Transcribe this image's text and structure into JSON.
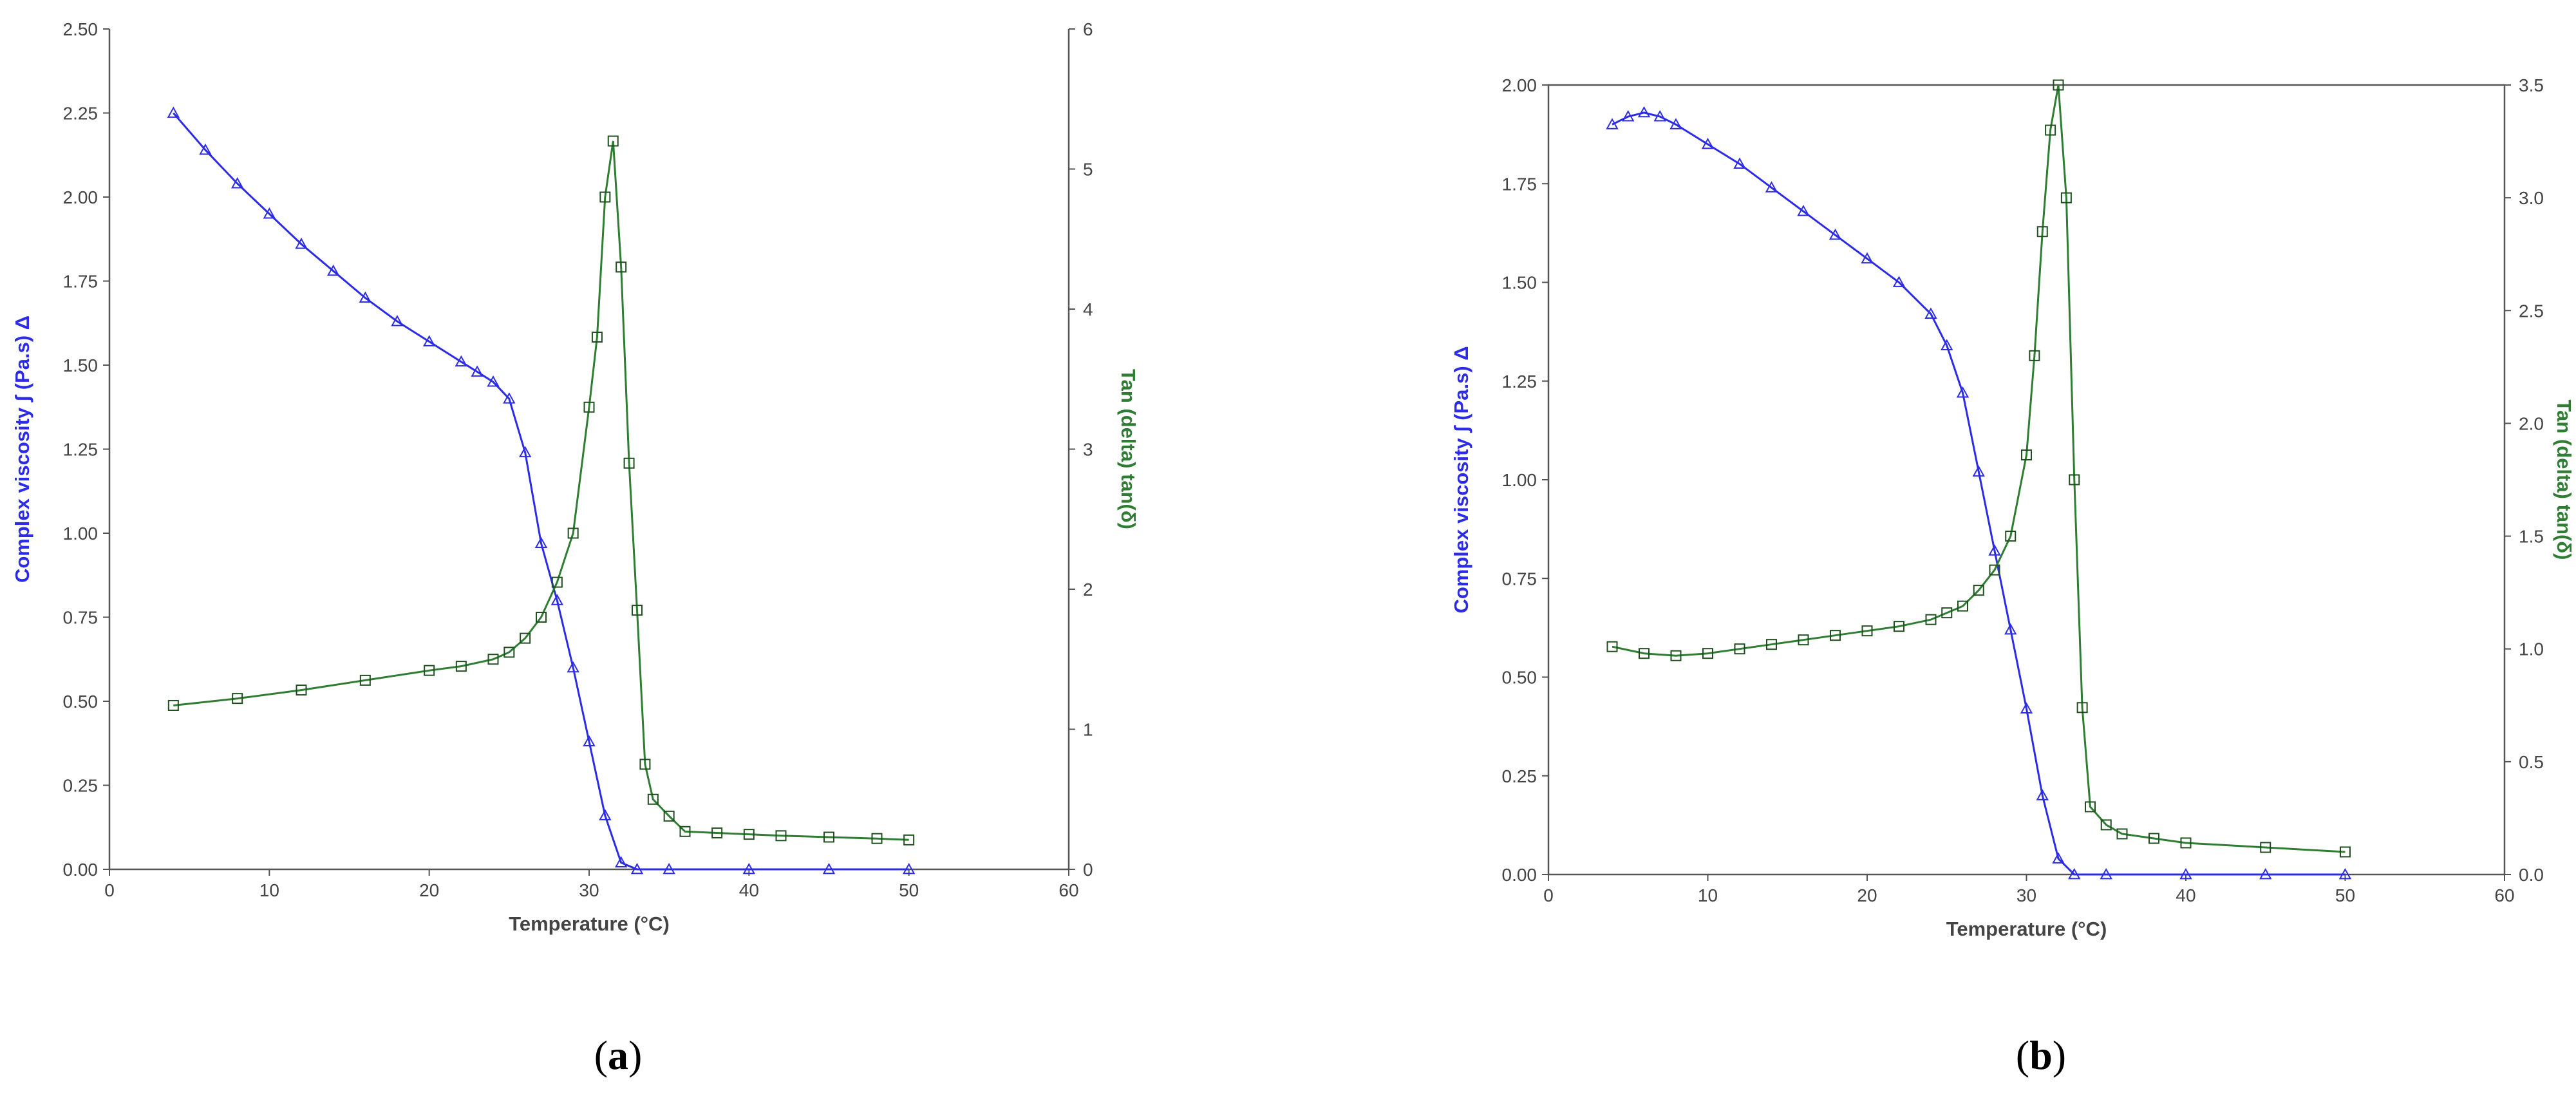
{
  "figure": {
    "colors": {
      "viscosity": "#2c2ce6",
      "tan_delta": "#2e7d32",
      "tan_delta_marker": "#1f4f1f",
      "axis": "#555555"
    }
  },
  "chart_data": [
    {
      "panel_label": "a",
      "type": "scatter",
      "xlabel": "Temperature (°C)",
      "ylabel_left": "Complex viscosity ʃ (Pa.s) Δ",
      "ylabel_right": "Tan (delta) tan(δ)",
      "xlim": [
        0,
        60
      ],
      "ylim_left": [
        0,
        2.5
      ],
      "ylim_right": [
        0,
        6
      ],
      "x_ticks": [
        "0",
        "10",
        "20",
        "30",
        "40",
        "50",
        "60"
      ],
      "y_left_ticks": [
        "0.00",
        "0.25",
        "0.50",
        "0.75",
        "1.00",
        "1.25",
        "1.50",
        "1.75",
        "2.00",
        "2.25",
        "2.50"
      ],
      "y_right_ticks": [
        "0",
        "1",
        "2",
        "3",
        "4",
        "5",
        "6"
      ],
      "grid": false,
      "top_border": false,
      "series": [
        {
          "name": "Complex viscosity",
          "axis": "left",
          "marker": "triangle",
          "x": [
            4,
            6,
            8,
            10,
            12,
            14,
            16,
            18,
            20,
            22,
            23,
            24,
            25,
            26,
            27,
            28,
            29,
            30,
            31,
            32,
            33,
            35,
            40,
            45,
            50
          ],
          "y": [
            2.25,
            2.14,
            2.04,
            1.95,
            1.86,
            1.78,
            1.7,
            1.63,
            1.57,
            1.51,
            1.48,
            1.45,
            1.4,
            1.24,
            0.97,
            0.8,
            0.6,
            0.38,
            0.16,
            0.02,
            0.0,
            0.0,
            0.0,
            0.0,
            0.0
          ]
        },
        {
          "name": "Tan (delta)",
          "axis": "right",
          "marker": "square",
          "x": [
            4,
            8,
            12,
            16,
            20,
            22,
            24,
            25,
            26,
            27,
            28,
            29,
            30,
            30.5,
            31,
            31.5,
            32,
            32.5,
            33,
            33.5,
            34,
            35,
            36,
            38,
            40,
            42,
            45,
            48,
            50
          ],
          "y": [
            1.17,
            1.22,
            1.28,
            1.35,
            1.42,
            1.45,
            1.5,
            1.55,
            1.65,
            1.8,
            2.05,
            2.4,
            3.3,
            3.8,
            4.8,
            5.2,
            4.3,
            2.9,
            1.85,
            0.75,
            0.5,
            0.38,
            0.27,
            0.26,
            0.25,
            0.24,
            0.23,
            0.22,
            0.21
          ]
        }
      ]
    },
    {
      "panel_label": "b",
      "type": "scatter",
      "xlabel": "Temperature (°C)",
      "ylabel_left": "Complex viscosity ʃ (Pa.s) Δ",
      "ylabel_right": "Tan (delta) tan(δ)",
      "xlim": [
        0,
        60
      ],
      "ylim_left": [
        0,
        2.0
      ],
      "ylim_right": [
        0,
        3.5
      ],
      "x_ticks": [
        "0",
        "10",
        "20",
        "30",
        "40",
        "50",
        "60"
      ],
      "y_left_ticks": [
        "0.00",
        "0.25",
        "0.50",
        "0.75",
        "1.00",
        "1.25",
        "1.50",
        "1.75",
        "2.00"
      ],
      "y_right_ticks": [
        "0.0",
        "0.5",
        "1.0",
        "1.5",
        "2.0",
        "2.5",
        "3.0",
        "3.5"
      ],
      "grid": false,
      "top_border": true,
      "series": [
        {
          "name": "Complex viscosity",
          "axis": "left",
          "marker": "triangle",
          "x": [
            4,
            5,
            6,
            7,
            8,
            10,
            12,
            14,
            16,
            18,
            20,
            22,
            24,
            25,
            26,
            27,
            28,
            29,
            30,
            31,
            32,
            33,
            35,
            40,
            45,
            50
          ],
          "y": [
            1.9,
            1.92,
            1.93,
            1.92,
            1.9,
            1.85,
            1.8,
            1.74,
            1.68,
            1.62,
            1.56,
            1.5,
            1.42,
            1.34,
            1.22,
            1.02,
            0.82,
            0.62,
            0.42,
            0.2,
            0.04,
            0.0,
            0.0,
            0.0,
            0.0,
            0.0
          ]
        },
        {
          "name": "Tan (delta)",
          "axis": "right",
          "marker": "square",
          "x": [
            4,
            6,
            8,
            10,
            12,
            14,
            16,
            18,
            20,
            22,
            24,
            25,
            26,
            27,
            28,
            29,
            30,
            30.5,
            31,
            31.5,
            32,
            32.5,
            33,
            33.5,
            34,
            35,
            36,
            38,
            40,
            45,
            50
          ],
          "y": [
            1.01,
            0.98,
            0.97,
            0.98,
            1.0,
            1.02,
            1.04,
            1.06,
            1.08,
            1.1,
            1.13,
            1.16,
            1.19,
            1.26,
            1.35,
            1.5,
            1.86,
            2.3,
            2.85,
            3.3,
            3.5,
            3.0,
            1.75,
            0.74,
            0.3,
            0.22,
            0.18,
            0.16,
            0.14,
            0.12,
            0.1
          ]
        }
      ]
    }
  ]
}
